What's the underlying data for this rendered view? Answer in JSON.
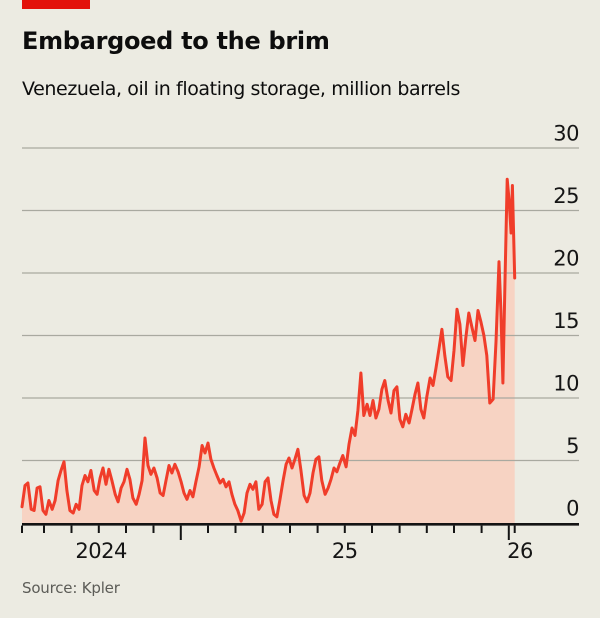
{
  "header": {
    "title": "Embargoed to the brim",
    "subtitle": "Venezuela, oil in floating storage, million barrels"
  },
  "footer": {
    "source": "Source: Kpler"
  },
  "brand": {
    "tab_color": "#E3120B"
  },
  "chart_data": {
    "type": "area",
    "title": "Embargoed to the brim",
    "subtitle": "Venezuela, oil in floating storage, million barrels",
    "xlabel": "",
    "ylabel": "million barrels",
    "grid": "horizontal",
    "legend": "none",
    "y_domain": [
      0,
      30
    ],
    "y_ticks": [
      0,
      5,
      10,
      15,
      20,
      25,
      30
    ],
    "x_domain": [
      2024.516,
      2026.214
    ],
    "x_ticks": [
      2024.516,
      2024.583,
      2024.667,
      2024.75,
      2024.833,
      2024.917,
      2025.0,
      2025.083,
      2025.167,
      2025.25,
      2025.333,
      2025.417,
      2025.5,
      2025.583,
      2025.667,
      2025.75,
      2025.833,
      2025.917,
      2026.0,
      2026.018
    ],
    "x_major_ticks": [
      2025.0,
      2026.0
    ],
    "x_labels": [
      {
        "text": "2024",
        "t": 2024.757
      },
      {
        "text": "25",
        "t": 2025.5
      },
      {
        "text": "26",
        "t": 2026.034
      }
    ],
    "colors": {
      "line": "#F03D2A",
      "fill": "#F7D3C3",
      "gridline": "#A9A9A0",
      "axis": "#141414",
      "tick_text": "#151515",
      "background": "#ECEBE2"
    },
    "series": [
      {
        "name": "Oil in floating storage (million barrels)",
        "x_unit": "decimal year",
        "points": [
          [
            2024.516,
            1.3
          ],
          [
            2024.525,
            3.0
          ],
          [
            2024.534,
            3.2
          ],
          [
            2024.544,
            1.1
          ],
          [
            2024.553,
            1.0
          ],
          [
            2024.562,
            2.8
          ],
          [
            2024.571,
            2.9
          ],
          [
            2024.58,
            1.0
          ],
          [
            2024.589,
            0.7
          ],
          [
            2024.598,
            1.8
          ],
          [
            2024.608,
            1.1
          ],
          [
            2024.617,
            1.8
          ],
          [
            2024.626,
            3.4
          ],
          [
            2024.635,
            4.2
          ],
          [
            2024.644,
            4.9
          ],
          [
            2024.653,
            2.6
          ],
          [
            2024.662,
            1.0
          ],
          [
            2024.672,
            0.8
          ],
          [
            2024.681,
            1.5
          ],
          [
            2024.69,
            1.1
          ],
          [
            2024.699,
            3.0
          ],
          [
            2024.708,
            3.8
          ],
          [
            2024.717,
            3.3
          ],
          [
            2024.726,
            4.2
          ],
          [
            2024.736,
            2.6
          ],
          [
            2024.745,
            2.3
          ],
          [
            2024.754,
            3.6
          ],
          [
            2024.763,
            4.4
          ],
          [
            2024.772,
            3.1
          ],
          [
            2024.781,
            4.3
          ],
          [
            2024.79,
            3.4
          ],
          [
            2024.8,
            2.3
          ],
          [
            2024.809,
            1.7
          ],
          [
            2024.818,
            2.8
          ],
          [
            2024.827,
            3.3
          ],
          [
            2024.836,
            4.3
          ],
          [
            2024.845,
            3.5
          ],
          [
            2024.854,
            2.0
          ],
          [
            2024.864,
            1.5
          ],
          [
            2024.873,
            2.3
          ],
          [
            2024.882,
            3.4
          ],
          [
            2024.891,
            6.8
          ],
          [
            2024.9,
            4.6
          ],
          [
            2024.909,
            3.9
          ],
          [
            2024.918,
            4.4
          ],
          [
            2024.928,
            3.6
          ],
          [
            2024.937,
            2.4
          ],
          [
            2024.946,
            2.2
          ],
          [
            2024.955,
            3.4
          ],
          [
            2024.964,
            4.6
          ],
          [
            2024.973,
            4.0
          ],
          [
            2024.982,
            4.7
          ],
          [
            2024.992,
            4.1
          ],
          [
            2025.001,
            3.3
          ],
          [
            2025.01,
            2.4
          ],
          [
            2025.019,
            1.9
          ],
          [
            2025.028,
            2.6
          ],
          [
            2025.037,
            2.1
          ],
          [
            2025.046,
            3.3
          ],
          [
            2025.056,
            4.5
          ],
          [
            2025.065,
            6.2
          ],
          [
            2025.074,
            5.6
          ],
          [
            2025.083,
            6.4
          ],
          [
            2025.092,
            5.1
          ],
          [
            2025.101,
            4.4
          ],
          [
            2025.11,
            3.8
          ],
          [
            2025.12,
            3.2
          ],
          [
            2025.129,
            3.5
          ],
          [
            2025.138,
            2.9
          ],
          [
            2025.147,
            3.3
          ],
          [
            2025.156,
            2.3
          ],
          [
            2025.165,
            1.5
          ],
          [
            2025.174,
            1.0
          ],
          [
            2025.184,
            0.15
          ],
          [
            2025.193,
            0.8
          ],
          [
            2025.202,
            2.4
          ],
          [
            2025.211,
            3.1
          ],
          [
            2025.22,
            2.7
          ],
          [
            2025.229,
            3.3
          ],
          [
            2025.238,
            1.1
          ],
          [
            2025.248,
            1.5
          ],
          [
            2025.257,
            3.3
          ],
          [
            2025.266,
            3.6
          ],
          [
            2025.275,
            1.8
          ],
          [
            2025.284,
            0.7
          ],
          [
            2025.293,
            0.5
          ],
          [
            2025.302,
            1.8
          ],
          [
            2025.312,
            3.4
          ],
          [
            2025.321,
            4.7
          ],
          [
            2025.33,
            5.2
          ],
          [
            2025.339,
            4.4
          ],
          [
            2025.348,
            5.1
          ],
          [
            2025.357,
            5.9
          ],
          [
            2025.366,
            4.3
          ],
          [
            2025.376,
            2.2
          ],
          [
            2025.385,
            1.7
          ],
          [
            2025.394,
            2.4
          ],
          [
            2025.403,
            4.0
          ],
          [
            2025.412,
            5.1
          ],
          [
            2025.421,
            5.3
          ],
          [
            2025.43,
            3.4
          ],
          [
            2025.44,
            2.3
          ],
          [
            2025.449,
            2.8
          ],
          [
            2025.458,
            3.5
          ],
          [
            2025.467,
            4.4
          ],
          [
            2025.476,
            4.1
          ],
          [
            2025.485,
            4.8
          ],
          [
            2025.494,
            5.4
          ],
          [
            2025.504,
            4.5
          ],
          [
            2025.513,
            6.3
          ],
          [
            2025.522,
            7.6
          ],
          [
            2025.531,
            7.0
          ],
          [
            2025.54,
            9.0
          ],
          [
            2025.549,
            12.0
          ],
          [
            2025.558,
            8.6
          ],
          [
            2025.568,
            9.5
          ],
          [
            2025.577,
            8.6
          ],
          [
            2025.586,
            9.8
          ],
          [
            2025.595,
            8.4
          ],
          [
            2025.604,
            9.1
          ],
          [
            2025.613,
            10.7
          ],
          [
            2025.622,
            11.4
          ],
          [
            2025.632,
            9.8
          ],
          [
            2025.641,
            8.8
          ],
          [
            2025.65,
            10.6
          ],
          [
            2025.659,
            10.9
          ],
          [
            2025.668,
            8.3
          ],
          [
            2025.677,
            7.7
          ],
          [
            2025.686,
            8.7
          ],
          [
            2025.696,
            8.0
          ],
          [
            2025.705,
            9.1
          ],
          [
            2025.714,
            10.3
          ],
          [
            2025.723,
            11.2
          ],
          [
            2025.732,
            9.1
          ],
          [
            2025.741,
            8.4
          ],
          [
            2025.75,
            10.1
          ],
          [
            2025.76,
            11.6
          ],
          [
            2025.769,
            11.0
          ],
          [
            2025.778,
            12.4
          ],
          [
            2025.787,
            13.9
          ],
          [
            2025.796,
            15.5
          ],
          [
            2025.805,
            13.4
          ],
          [
            2025.814,
            11.7
          ],
          [
            2025.824,
            11.4
          ],
          [
            2025.833,
            13.8
          ],
          [
            2025.842,
            17.1
          ],
          [
            2025.851,
            15.9
          ],
          [
            2025.86,
            12.6
          ],
          [
            2025.869,
            14.8
          ],
          [
            2025.878,
            16.8
          ],
          [
            2025.888,
            15.6
          ],
          [
            2025.897,
            14.6
          ],
          [
            2025.906,
            17.0
          ],
          [
            2025.915,
            16.1
          ],
          [
            2025.924,
            15.0
          ],
          [
            2025.933,
            13.4
          ],
          [
            2025.942,
            9.6
          ],
          [
            2025.952,
            9.9
          ],
          [
            2025.961,
            14.5
          ],
          [
            2025.97,
            20.9
          ],
          [
            2025.976,
            17.0
          ],
          [
            2025.982,
            11.2
          ],
          [
            2025.988,
            19.0
          ],
          [
            2025.995,
            27.5
          ],
          [
            2026.001,
            25.8
          ],
          [
            2026.007,
            23.2
          ],
          [
            2026.011,
            27.0
          ],
          [
            2026.018,
            19.6
          ]
        ]
      }
    ]
  }
}
